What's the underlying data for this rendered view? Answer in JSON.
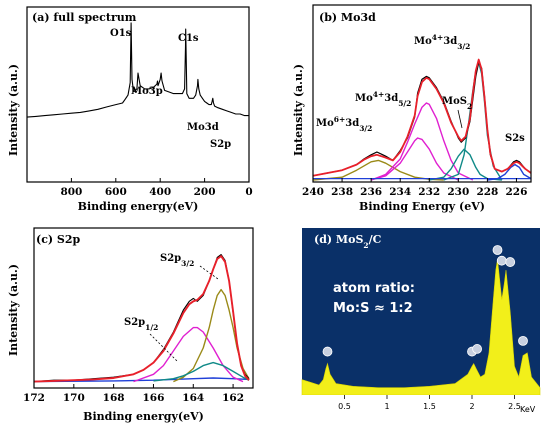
{
  "colors": {
    "spectrum": "#000000",
    "fit_envelope": "#e8202a",
    "magenta": "#e020d0",
    "olive": "#9a8a18",
    "teal": "#108a88",
    "blue": "#2040d8",
    "edx_background": "#0a3068",
    "edx_fill": "#f2ef1a"
  },
  "chart_data": [
    {
      "id": "a",
      "type": "line",
      "panel_label": "(a) full spectrum",
      "xlabel": "Binding energy(eV)",
      "ylabel": "Intensity (a.u.)",
      "xlim": [
        1000,
        0
      ],
      "xticks": [
        "800",
        "600",
        "400",
        "200",
        "0"
      ],
      "peaks": [
        {
          "label": "O1s",
          "x": 531
        },
        {
          "label": "Mo3p",
          "x": 396
        },
        {
          "label": "C1s",
          "x": 285
        },
        {
          "label": "Mo3d",
          "x": 230
        },
        {
          "label": "S2p",
          "x": 163
        }
      ],
      "series": [
        {
          "x": [
            1000,
            960,
            920,
            880,
            840,
            800,
            760,
            720,
            680,
            640,
            600,
            570,
            560,
            545,
            535,
            531,
            527,
            520,
            505,
            500,
            490,
            470,
            450,
            430,
            415,
            412,
            410,
            400,
            396,
            392,
            380,
            360,
            340,
            320,
            300,
            290,
            286,
            285,
            283,
            280,
            270,
            250,
            240,
            232,
            230,
            226,
            220,
            210,
            200,
            190,
            180,
            170,
            166,
            163,
            160,
            155,
            140,
            120,
            100,
            80,
            60,
            40,
            20,
            0
          ],
          "y": [
            40,
            40.5,
            41,
            41.5,
            42,
            42.5,
            43,
            44,
            45,
            46.5,
            48,
            49,
            51,
            54,
            62,
            100,
            64,
            56,
            58,
            68,
            60,
            58,
            58,
            59,
            61,
            63,
            60,
            64,
            68,
            63,
            57,
            56,
            55,
            55,
            55,
            58,
            85,
            96,
            78,
            55,
            52,
            52,
            54,
            60,
            64,
            58,
            54,
            52,
            50,
            49,
            48,
            48,
            50,
            52,
            49,
            47,
            46,
            45,
            44,
            43,
            42,
            42,
            41,
            41
          ]
        }
      ]
    },
    {
      "id": "b",
      "type": "line",
      "panel_label": "(b) Mo3d",
      "xlabel": "Binding Energy (eV)",
      "ylabel": "Intensity (a.u.)",
      "xlim": [
        240,
        225
      ],
      "xticks": [
        "240",
        "238",
        "236",
        "234",
        "232",
        "230",
        "228",
        "226"
      ],
      "annotations": [
        {
          "base": "Mo",
          "sup": "6+",
          "mid": "3d",
          "sub": "3/2"
        },
        {
          "base": "Mo",
          "sup": "4+",
          "mid": "3d",
          "sub": "5/2"
        },
        {
          "base": "Mo",
          "sup": "4+",
          "mid": "3d",
          "sub": "3/2"
        },
        {
          "base": "MoS",
          "sub": "2"
        },
        {
          "base": "S2s"
        }
      ],
      "series": [
        {
          "role": "raw",
          "color": "#000000",
          "x": [
            240,
            239,
            238,
            237,
            236.5,
            236,
            235.6,
            235,
            234.5,
            234,
            233.5,
            233,
            232.8,
            232.5,
            232.2,
            232,
            231.5,
            231,
            230.5,
            230,
            229.8,
            229.5,
            229.2,
            229,
            228.8,
            228.6,
            228.4,
            228.2,
            228,
            227.8,
            227.5,
            227,
            226.6,
            226.2,
            226,
            225.8,
            225.4,
            225
          ],
          "y": [
            3,
            5,
            7,
            11,
            15,
            18,
            20,
            17,
            14,
            21,
            30,
            45,
            62,
            72,
            74,
            73,
            66,
            56,
            42,
            30,
            27,
            30,
            42,
            58,
            74,
            84,
            80,
            60,
            36,
            18,
            8,
            6,
            8,
            13,
            14,
            13,
            8,
            5
          ]
        },
        {
          "role": "fit envelope",
          "color": "#e8202a",
          "x": [
            240,
            239,
            238,
            237,
            236.5,
            236,
            235.6,
            235,
            234.5,
            234,
            233.5,
            233,
            232.8,
            232.5,
            232.2,
            232,
            231.5,
            231,
            230.5,
            230,
            229.8,
            229.5,
            229.2,
            229,
            228.8,
            228.6,
            228.4,
            228.2,
            228,
            227.8,
            227.5,
            227,
            226.6,
            226.2,
            226,
            225.8,
            225.4,
            225
          ],
          "y": [
            3,
            5,
            7,
            11,
            14.5,
            17,
            18,
            16,
            14,
            20,
            31,
            46,
            60,
            70,
            73,
            72,
            65,
            55,
            41,
            31,
            28,
            31,
            44,
            62,
            78,
            86,
            79,
            59,
            36,
            19,
            8,
            6,
            8,
            12,
            13,
            12,
            8,
            5
          ]
        },
        {
          "role": "Mo6+ 3d3/2",
          "color": "#9a8a18",
          "x": [
            240,
            238,
            237,
            236,
            235.5,
            235,
            234,
            233,
            232,
            231
          ],
          "y": [
            0,
            2,
            7,
            13,
            14,
            12,
            6,
            2,
            0.5,
            0
          ]
        },
        {
          "role": "Mo4+ 3d5/2",
          "color": "#e020d0",
          "x": [
            236,
            235,
            234,
            233.5,
            233,
            232.5,
            232.2,
            232,
            231.5,
            231,
            230.5,
            230,
            229
          ],
          "y": [
            0,
            4,
            15,
            27,
            40,
            52,
            55,
            54,
            44,
            28,
            14,
            5,
            0
          ]
        },
        {
          "role": "Mo4+ 3d5/2 (second)",
          "color": "#e020d0",
          "x": [
            236,
            235,
            234,
            233.5,
            233,
            232.8,
            232.5,
            232,
            231.5,
            231,
            230
          ],
          "y": [
            0,
            3,
            12,
            20,
            28,
            30,
            29,
            22,
            12,
            5,
            0
          ]
        },
        {
          "role": "MoS2",
          "color": "#108a88",
          "x": [
            232,
            231,
            230.5,
            230,
            229.6,
            229.2,
            228.8,
            228.5,
            228,
            227
          ],
          "y": [
            0,
            2,
            8,
            17,
            22,
            18,
            9,
            4,
            1,
            0
          ]
        },
        {
          "role": "Mo4+ 3d3/2",
          "color": "#108a88",
          "x": [
            231,
            230,
            229.6,
            229.3,
            229,
            228.8,
            228.6,
            228.4,
            228.2,
            228,
            227.6,
            227
          ],
          "y": [
            0,
            4,
            18,
            40,
            64,
            78,
            84,
            76,
            56,
            32,
            10,
            0
          ]
        },
        {
          "role": "S2s",
          "color": "#2040d8",
          "x": [
            228,
            227.3,
            226.8,
            226.4,
            226.1,
            225.8,
            225.5,
            225
          ],
          "y": [
            0,
            1,
            4,
            9,
            11,
            9,
            4,
            1
          ]
        }
      ]
    },
    {
      "id": "c",
      "type": "line",
      "panel_label": "(c) S2p",
      "xlabel": "Binding energy(eV)",
      "ylabel": "Intensity (a.u.)",
      "xlim": [
        172,
        161
      ],
      "xticks": [
        "172",
        "170",
        "168",
        "166",
        "164",
        "162"
      ],
      "annotations": [
        {
          "base": "S2p",
          "sub": "3/2"
        },
        {
          "base": "S2p",
          "sub": "1/2"
        }
      ],
      "series": [
        {
          "role": "raw",
          "color": "#000000",
          "x": [
            172,
            171,
            170,
            169,
            168,
            167,
            166.5,
            166,
            165.5,
            165,
            164.5,
            164.2,
            164,
            163.8,
            163.5,
            163.2,
            163,
            162.8,
            162.6,
            162.4,
            162.2,
            162,
            161.8,
            161.6,
            161.4,
            161.2
          ],
          "y": [
            3,
            4,
            4,
            5,
            6,
            8,
            11,
            16,
            25,
            37,
            52,
            58,
            60,
            58,
            62,
            72,
            80,
            88,
            90,
            86,
            72,
            50,
            28,
            14,
            8,
            5
          ]
        },
        {
          "role": "fit envelope",
          "color": "#e8202a",
          "x": [
            172,
            171,
            170,
            169,
            168,
            167,
            166.5,
            166,
            165.5,
            165,
            164.5,
            164.2,
            164,
            163.8,
            163.5,
            163.2,
            163,
            162.8,
            162.6,
            162.4,
            162.2,
            162,
            161.8,
            161.6,
            161.4,
            161.2
          ],
          "y": [
            3,
            3.5,
            4,
            4.5,
            5.5,
            8,
            11,
            16,
            24,
            36,
            50,
            56,
            58,
            59,
            63,
            72,
            80,
            87,
            89,
            85,
            72,
            51,
            29,
            14,
            7,
            4
          ]
        },
        {
          "role": "baseline",
          "color": "#2040d8",
          "x": [
            172,
            168,
            166,
            165,
            164,
            163,
            162,
            161.2
          ],
          "y": [
            3,
            3.5,
            4,
            4.5,
            5,
            5.5,
            5,
            4.5
          ]
        },
        {
          "role": "S2p1/2",
          "color": "#e020d0",
          "x": [
            167,
            166,
            165.5,
            165,
            164.5,
            164,
            163.8,
            163.5,
            163,
            162.5,
            162,
            161.5
          ],
          "y": [
            3,
            8,
            14,
            24,
            34,
            40,
            40,
            37,
            26,
            14,
            6,
            3
          ]
        },
        {
          "role": "S2p3/2",
          "color": "#9a8a18",
          "x": [
            165,
            164.5,
            164,
            163.5,
            163.2,
            163,
            162.8,
            162.6,
            162.4,
            162.2,
            162,
            161.8,
            161.5,
            161.2
          ],
          "y": [
            3,
            6,
            12,
            26,
            40,
            52,
            62,
            66,
            62,
            52,
            40,
            26,
            12,
            5
          ]
        },
        {
          "role": "component",
          "color": "#108a88",
          "x": [
            166,
            165,
            164.5,
            164,
            163.5,
            163,
            162.5,
            162,
            161.5,
            161.2
          ],
          "y": [
            3.5,
            5,
            7,
            10,
            14,
            16,
            14,
            10,
            6,
            4
          ]
        }
      ]
    },
    {
      "id": "d",
      "type": "area",
      "panel_label": {
        "base": "(d) MoS",
        "sub": "2",
        "tail": "/C"
      },
      "annotation": [
        "atom ratio:",
        "Mo:S ≈ 1:2"
      ],
      "xlim": [
        0,
        2.8
      ],
      "xticks": [
        "0.5",
        "1",
        "1.5",
        "2",
        "2.5"
      ],
      "xunit": "KeV",
      "series": [
        {
          "x": [
            0,
            0.1,
            0.2,
            0.25,
            0.28,
            0.3,
            0.33,
            0.4,
            0.6,
            0.9,
            1.2,
            1.5,
            1.8,
            1.95,
            2.0,
            2.02,
            2.05,
            2.1,
            2.15,
            2.2,
            2.25,
            2.28,
            2.3,
            2.32,
            2.35,
            2.38,
            2.4,
            2.45,
            2.5,
            2.55,
            2.6,
            2.65,
            2.7,
            2.8
          ],
          "y": [
            10,
            8,
            6,
            10,
            18,
            22,
            14,
            7,
            5,
            4,
            4,
            5,
            7,
            14,
            20,
            22,
            18,
            12,
            14,
            30,
            70,
            92,
            100,
            88,
            70,
            82,
            92,
            60,
            20,
            12,
            28,
            30,
            12,
            4
          ]
        }
      ]
    }
  ]
}
